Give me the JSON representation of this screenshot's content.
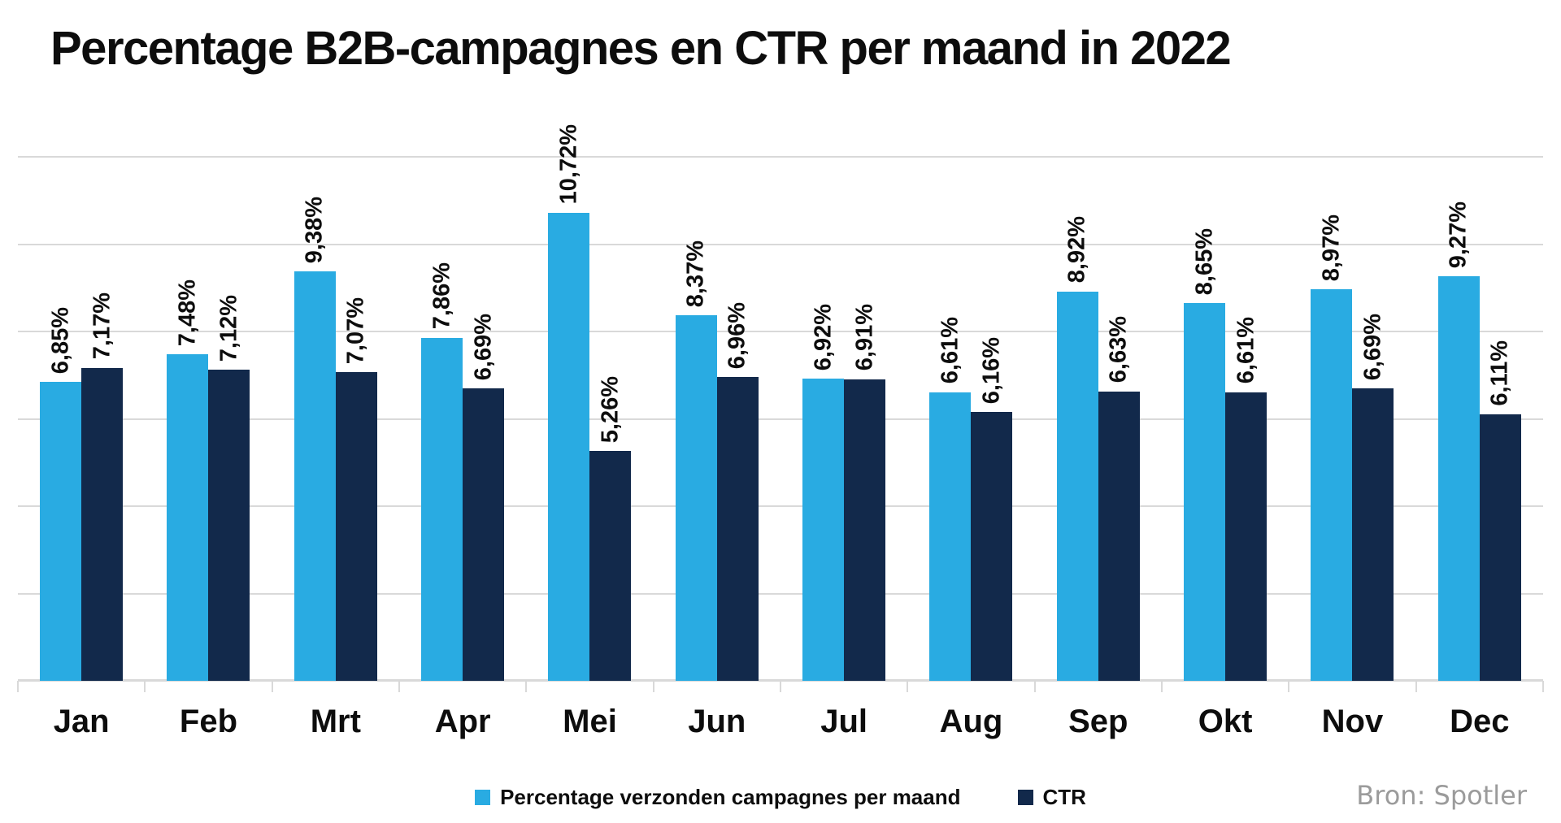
{
  "title": "Percentage B2B-campagnes en CTR per maand in 2022",
  "source": "Bron: Spotler",
  "legend": {
    "items": [
      {
        "label": "Percentage verzonden campagnes per maand",
        "color": "#29abe2"
      },
      {
        "label": "CTR",
        "color": "#12294b"
      }
    ]
  },
  "chart_data": {
    "type": "bar",
    "title": "Percentage B2B-campagnes en CTR per maand in 2022",
    "categories": [
      "Jan",
      "Feb",
      "Mrt",
      "Apr",
      "Mei",
      "Jun",
      "Jul",
      "Aug",
      "Sep",
      "Okt",
      "Nov",
      "Dec"
    ],
    "series": [
      {
        "name": "Percentage verzonden campagnes per maand",
        "color": "#29abe2",
        "values": [
          6.85,
          7.48,
          9.38,
          7.86,
          10.72,
          8.37,
          6.92,
          6.61,
          8.92,
          8.65,
          8.97,
          9.27
        ],
        "labels": [
          "6,85%",
          "7,48%",
          "9,38%",
          "7,86%",
          "10,72%",
          "8,37%",
          "6,92%",
          "6,61%",
          "8,92%",
          "8,65%",
          "8,97%",
          "9,27%"
        ]
      },
      {
        "name": "CTR",
        "color": "#12294b",
        "values": [
          7.17,
          7.12,
          7.07,
          6.69,
          5.26,
          6.96,
          6.91,
          6.16,
          6.63,
          6.61,
          6.69,
          6.11
        ],
        "labels": [
          "7,17%",
          "7,12%",
          "7,07%",
          "6,69%",
          "5,26%",
          "6,96%",
          "6,91%",
          "6,16%",
          "6,63%",
          "6,61%",
          "6,69%",
          "6,11%"
        ]
      }
    ],
    "xlabel": "",
    "ylabel": "",
    "ylim": [
      0,
      12
    ],
    "grid": true,
    "grid_step": 2,
    "gridline_color": "#d9d9d9",
    "axis_color": "#d9d9d9",
    "value_label_rotation": -90,
    "decimal_separator": ",",
    "legend_position": "bottom",
    "y_tick_labels_visible": false
  }
}
